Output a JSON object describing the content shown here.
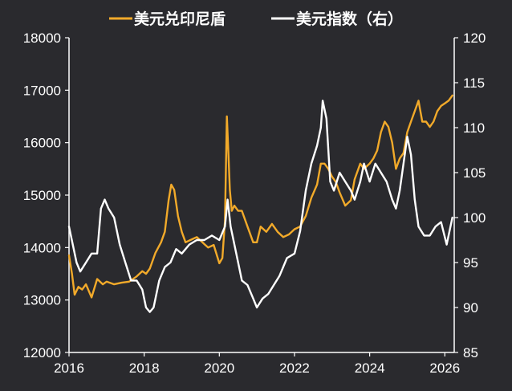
{
  "colors": {
    "background": "#2a2a2e",
    "usd_idr": "#f2aa2a",
    "dxy": "#ffffff",
    "axis": "#ffffff",
    "text": "#ffffff"
  },
  "chart_data": {
    "type": "line",
    "title": "",
    "xlabel": "",
    "ylabel_left": "",
    "ylabel_right": "",
    "grid": false,
    "legend_position": "top",
    "x_ticks": [
      "2016",
      "2018",
      "2020",
      "2022",
      "2024",
      "2026"
    ],
    "x_range": [
      2016.0,
      2026.25
    ],
    "y_left_ticks": [
      "12000",
      "13000",
      "14000",
      "15000",
      "16000",
      "17000",
      "18000"
    ],
    "y_left_range": [
      12000,
      18000
    ],
    "y_right_ticks": [
      "85",
      "90",
      "95",
      "100",
      "105",
      "110",
      "115",
      "120"
    ],
    "y_right_range": [
      85,
      120
    ],
    "series": [
      {
        "name": "美元兑印尼盾",
        "axis": "left",
        "color": "#f2aa2a",
        "x": [
          2016.0,
          2016.08,
          2016.15,
          2016.25,
          2016.35,
          2016.45,
          2016.6,
          2016.75,
          2016.9,
          2017.0,
          2017.2,
          2017.4,
          2017.6,
          2017.8,
          2017.95,
          2018.05,
          2018.15,
          2018.3,
          2018.45,
          2018.55,
          2018.65,
          2018.72,
          2018.8,
          2018.9,
          2019.0,
          2019.1,
          2019.25,
          2019.4,
          2019.55,
          2019.7,
          2019.85,
          2020.0,
          2020.08,
          2020.15,
          2020.2,
          2020.24,
          2020.28,
          2020.33,
          2020.4,
          2020.5,
          2020.6,
          2020.75,
          2020.9,
          2021.0,
          2021.1,
          2021.25,
          2021.4,
          2021.55,
          2021.7,
          2021.85,
          2022.0,
          2022.15,
          2022.3,
          2022.45,
          2022.6,
          2022.7,
          2022.8,
          2022.9,
          2023.0,
          2023.1,
          2023.2,
          2023.35,
          2023.5,
          2023.6,
          2023.75,
          2023.85,
          2024.0,
          2024.1,
          2024.2,
          2024.3,
          2024.4,
          2024.5,
          2024.6,
          2024.7,
          2024.8,
          2024.9,
          2025.0,
          2025.1,
          2025.2,
          2025.3,
          2025.4,
          2025.5,
          2025.6,
          2025.7,
          2025.8,
          2025.9,
          2026.0,
          2026.1,
          2026.2
        ],
        "values": [
          13850,
          13500,
          13100,
          13250,
          13200,
          13300,
          13050,
          13400,
          13300,
          13350,
          13300,
          13330,
          13350,
          13450,
          13550,
          13500,
          13600,
          13900,
          14100,
          14300,
          14900,
          15200,
          15100,
          14600,
          14300,
          14100,
          14150,
          14200,
          14100,
          14000,
          14050,
          13700,
          13800,
          14500,
          16500,
          15800,
          15100,
          14700,
          14800,
          14700,
          14700,
          14400,
          14100,
          14100,
          14400,
          14300,
          14450,
          14300,
          14200,
          14250,
          14350,
          14400,
          14600,
          14950,
          15200,
          15600,
          15600,
          15500,
          15350,
          15250,
          15050,
          14800,
          14900,
          15300,
          15600,
          15500,
          15600,
          15700,
          15850,
          16200,
          16400,
          16300,
          16000,
          15500,
          15700,
          15800,
          16200,
          16400,
          16600,
          16800,
          16400,
          16400,
          16300,
          16400,
          16600,
          16700,
          16750,
          16800,
          16900
        ]
      },
      {
        "name": "美元指数（右）",
        "axis": "right",
        "color": "#ffffff",
        "x": [
          2016.0,
          2016.1,
          2016.2,
          2016.3,
          2016.45,
          2016.6,
          2016.75,
          2016.85,
          2016.95,
          2017.05,
          2017.2,
          2017.35,
          2017.5,
          2017.65,
          2017.8,
          2017.95,
          2018.05,
          2018.15,
          2018.25,
          2018.4,
          2018.55,
          2018.7,
          2018.85,
          2019.0,
          2019.2,
          2019.4,
          2019.6,
          2019.8,
          2020.0,
          2020.15,
          2020.22,
          2020.3,
          2020.45,
          2020.6,
          2020.75,
          2020.9,
          2021.0,
          2021.15,
          2021.3,
          2021.45,
          2021.6,
          2021.8,
          2022.0,
          2022.15,
          2022.3,
          2022.45,
          2022.6,
          2022.7,
          2022.75,
          2022.85,
          2022.95,
          2023.05,
          2023.2,
          2023.35,
          2023.5,
          2023.6,
          2023.75,
          2023.85,
          2024.0,
          2024.15,
          2024.3,
          2024.45,
          2024.6,
          2024.7,
          2024.8,
          2024.9,
          2025.0,
          2025.1,
          2025.2,
          2025.3,
          2025.45,
          2025.6,
          2025.75,
          2025.9,
          2026.05,
          2026.2
        ],
        "values": [
          99,
          97,
          95,
          94,
          95,
          96,
          96,
          101,
          102,
          101,
          100,
          97,
          95,
          93,
          93,
          92,
          90,
          89.5,
          90,
          93,
          94.5,
          95,
          96.5,
          96,
          97,
          97.5,
          97.5,
          98,
          97.5,
          99,
          102,
          99,
          96,
          93,
          92.5,
          91,
          90,
          91,
          91.5,
          92.5,
          93.5,
          95.5,
          96,
          98.5,
          103,
          106,
          108,
          110,
          113,
          111,
          104,
          103,
          105,
          104,
          103,
          102,
          104,
          106,
          104,
          106,
          105,
          104,
          102,
          101,
          103,
          106,
          109,
          107,
          102,
          99,
          98,
          98,
          99,
          99.5,
          97,
          100
        ]
      }
    ]
  }
}
